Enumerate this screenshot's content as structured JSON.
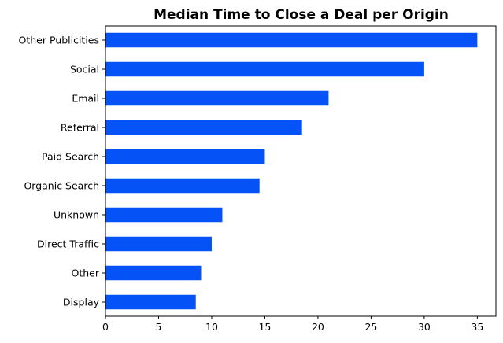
{
  "chart_data": {
    "type": "bar",
    "orientation": "horizontal",
    "title": "Median Time to Close a Deal per Origin",
    "xlabel": "",
    "ylabel": "",
    "categories": [
      "Other Publicities",
      "Social",
      "Email",
      "Referral",
      "Paid Search",
      "Organic Search",
      "Unknown",
      "Direct Traffic",
      "Other",
      "Display"
    ],
    "values": [
      35,
      30,
      21,
      18.5,
      15,
      14.5,
      11,
      10,
      9,
      8.5
    ],
    "xlim": [
      0,
      36.75
    ],
    "xticks": [
      0,
      5,
      10,
      15,
      20,
      25,
      30,
      35
    ],
    "grid": false,
    "legend": "none",
    "bar_color": "#0552F7"
  }
}
